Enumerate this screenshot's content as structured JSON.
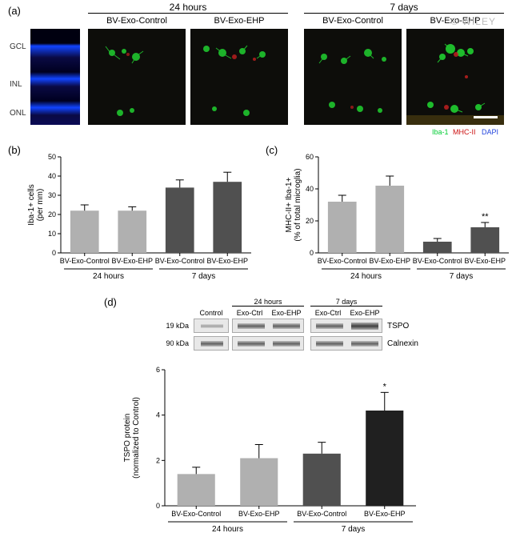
{
  "panel_a": {
    "label": "(a)",
    "time_headers": [
      "24 hours",
      "7 days"
    ],
    "sub_headers": [
      "BV-Exo-Control",
      "BV-Exo-EHP",
      "BV-Exo-Control",
      "BV-Exo-EHP"
    ],
    "layer_labels": [
      "GCL",
      "INL",
      "ONL"
    ],
    "legend": [
      {
        "text": "Iba-1",
        "color": "#00cc33"
      },
      {
        "text": "MHC-II",
        "color": "#cc1111"
      },
      {
        "text": "DAPI",
        "color": "#2244dd"
      }
    ],
    "dapi_bg": "#0a0a44",
    "dapi_bright": "#1144ff",
    "micro_bg": "#0d0d0a",
    "signal_green": "#20d030",
    "signal_red": "#c02020",
    "watermark": "© WILEY"
  },
  "panel_b": {
    "label": "(b)",
    "type": "bar",
    "ylabel": "Iba-1+ cells\n(per mm)",
    "ylim": [
      0,
      50
    ],
    "ytick_step": 10,
    "groups": [
      {
        "label": "BV-Exo-Control",
        "time": "24 hours",
        "value": 22,
        "err": 3,
        "color": "#b0b0b0"
      },
      {
        "label": "BV-Exo-EHP",
        "time": "24 hours",
        "value": 22,
        "err": 2,
        "color": "#b0b0b0"
      },
      {
        "label": "BV-Exo-Control",
        "time": "7 days",
        "value": 34,
        "err": 4,
        "color": "#505050"
      },
      {
        "label": "BV-Exo-EHP",
        "time": "7 days",
        "value": 37,
        "err": 5,
        "color": "#505050"
      }
    ]
  },
  "panel_c": {
    "label": "(c)",
    "type": "bar",
    "ylabel": "MHC-II+ Iba-1+\n(% of total microglia)",
    "ylim": [
      0,
      60
    ],
    "ytick_step": 20,
    "groups": [
      {
        "label": "BV-Exo-Control",
        "time": "24 hours",
        "value": 32,
        "err": 4,
        "color": "#b0b0b0"
      },
      {
        "label": "BV-Exo-EHP",
        "time": "24 hours",
        "value": 42,
        "err": 6,
        "color": "#b0b0b0"
      },
      {
        "label": "BV-Exo-Control",
        "time": "7 days",
        "value": 7,
        "err": 2,
        "color": "#505050"
      },
      {
        "label": "BV-Exo-EHP",
        "time": "7 days",
        "value": 16,
        "err": 3,
        "color": "#505050",
        "sig": "**"
      }
    ]
  },
  "panel_d": {
    "label": "(d)",
    "blot_headers_time": [
      "24 hours",
      "7 days"
    ],
    "blot_headers_lane": [
      "Control",
      "Exo-Ctrl",
      "Exo-EHP",
      "Exo-Ctrl",
      "Exo-EHP"
    ],
    "rows": [
      {
        "kda": "19 kDa",
        "name": "TSPO"
      },
      {
        "kda": "90 kDa",
        "name": "Calnexin"
      }
    ],
    "chart": {
      "type": "bar",
      "ylabel": "TSPO protein\n(normalized to Control)",
      "ylim": [
        0,
        6
      ],
      "ytick_step": 2,
      "groups": [
        {
          "label": "BV-Exo-Control",
          "time": "24 hours",
          "value": 1.4,
          "err": 0.3,
          "color": "#b0b0b0"
        },
        {
          "label": "BV-Exo-EHP",
          "time": "24 hours",
          "value": 2.1,
          "err": 0.6,
          "color": "#b0b0b0"
        },
        {
          "label": "BV-Exo-Control",
          "time": "7 days",
          "value": 2.3,
          "err": 0.5,
          "color": "#505050"
        },
        {
          "label": "BV-Exo-EHP",
          "time": "7 days",
          "value": 4.2,
          "err": 0.8,
          "color": "#202020",
          "sig": "*"
        }
      ]
    }
  }
}
